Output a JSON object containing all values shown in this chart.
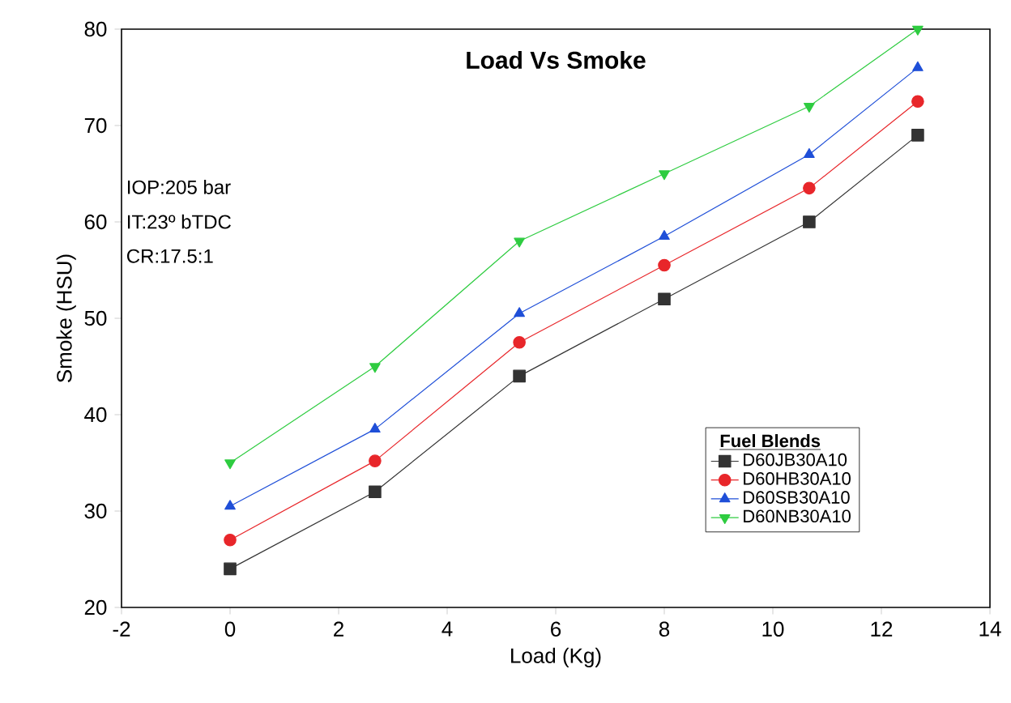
{
  "chart_data": {
    "type": "line",
    "title": "Load Vs Smoke",
    "xlabel": "Load (Kg)",
    "ylabel": "Smoke (HSU)",
    "legend_title": "Fuel Blends",
    "annotations": [
      "IOP:205 bar",
      "IT:23º bTDC",
      "CR:17.5:1"
    ],
    "x": [
      0,
      2.67,
      5.33,
      8,
      10.67,
      12.67
    ],
    "series": [
      {
        "name": "D60JB30A10",
        "color": "#333333",
        "marker": "square",
        "values": [
          24,
          32,
          44,
          52,
          60,
          69
        ]
      },
      {
        "name": "D60HB30A10",
        "color": "#e8262a",
        "marker": "circle",
        "values": [
          27,
          35.2,
          47.5,
          55.5,
          63.5,
          72.5
        ]
      },
      {
        "name": "D60SB30A10",
        "color": "#1f4fd8",
        "marker": "triangle",
        "values": [
          30.5,
          38.5,
          50.5,
          58.5,
          67,
          76
        ]
      },
      {
        "name": "D60NB30A10",
        "color": "#2ecc40",
        "marker": "triangle-down",
        "values": [
          35,
          45,
          58,
          65,
          72,
          80
        ]
      }
    ],
    "xlim": [
      -2,
      14
    ],
    "ylim": [
      20,
      80
    ],
    "xticks": [
      -2,
      0,
      2,
      4,
      6,
      8,
      10,
      12,
      14
    ],
    "yticks": [
      20,
      30,
      40,
      50,
      60,
      70,
      80
    ],
    "legend": "bottom right",
    "grid": false,
    "line_style": "solid"
  }
}
